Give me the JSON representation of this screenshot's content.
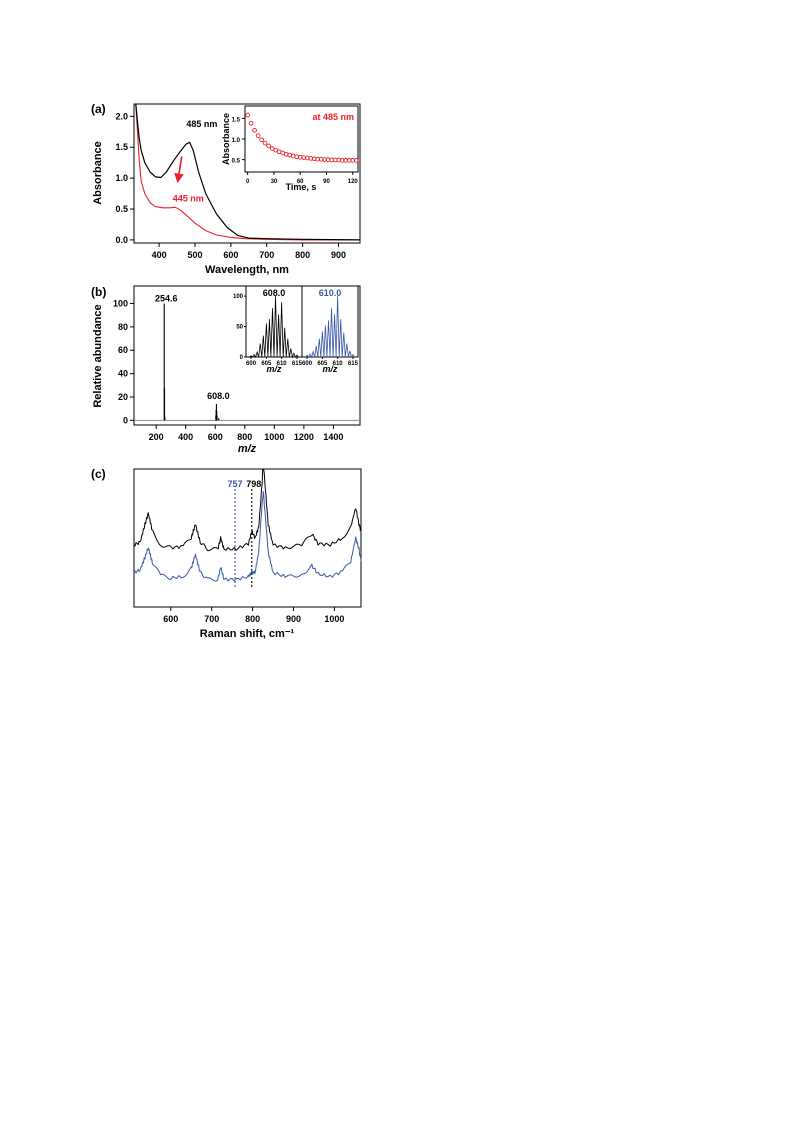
{
  "colors": {
    "black": "#000000",
    "red": "#e8202a",
    "blue": "#3a56a8",
    "gray": "#8a8a8a"
  },
  "chart_data": [
    {
      "panel": "(a)",
      "type": "line",
      "xlabel": "Wavelength, nm",
      "ylabel": "Absorbance",
      "xlim": [
        330,
        960
      ],
      "ylim": [
        -0.05,
        2.2
      ],
      "xticks": [
        400,
        500,
        600,
        700,
        800,
        900
      ],
      "yticks": [
        0.0,
        0.5,
        1.0,
        1.5,
        2.0
      ],
      "ytick_labels": [
        "0.0",
        "0.5",
        "1.0",
        "1.5",
        "2.0"
      ],
      "series": [
        {
          "color": "#000000",
          "x": [
            335,
            340,
            345,
            350,
            360,
            375,
            390,
            405,
            420,
            440,
            460,
            475,
            485,
            495,
            510,
            530,
            560,
            590,
            620,
            650,
            700,
            800,
            960
          ],
          "y": [
            2.2,
            1.9,
            1.62,
            1.45,
            1.25,
            1.1,
            1.02,
            1.01,
            1.1,
            1.28,
            1.44,
            1.55,
            1.58,
            1.45,
            1.1,
            0.75,
            0.42,
            0.2,
            0.07,
            0.03,
            0.02,
            0.01,
            0.0
          ]
        },
        {
          "color": "#e8202a",
          "x": [
            335,
            340,
            345,
            350,
            360,
            375,
            390,
            410,
            430,
            445,
            460,
            480,
            500,
            530,
            560,
            600,
            640,
            700,
            800,
            960
          ],
          "y": [
            2.2,
            1.72,
            1.25,
            0.95,
            0.75,
            0.6,
            0.54,
            0.52,
            0.52,
            0.53,
            0.48,
            0.38,
            0.27,
            0.15,
            0.08,
            0.04,
            0.02,
            0.01,
            0.0,
            0.0
          ]
        }
      ],
      "annotations": [
        {
          "text": "485 nm",
          "color": "#000000"
        },
        {
          "text": "445 nm",
          "color": "#e8202a"
        }
      ],
      "inset": {
        "type": "scatter",
        "title": "at 485 nm",
        "xlabel": "Time, s",
        "ylabel": "Absorbance",
        "xlim": [
          -3,
          126
        ],
        "ylim": [
          0.2,
          1.8
        ],
        "xticks": [
          0,
          30,
          60,
          90,
          120
        ],
        "yticks": [
          0.5,
          1.0,
          1.5
        ],
        "ytick_labels": [
          "0.5",
          "1.0",
          "1.5"
        ],
        "color": "#e8202a",
        "x": [
          0,
          4,
          8,
          12,
          16,
          20,
          24,
          28,
          32,
          36,
          40,
          44,
          48,
          52,
          56,
          60,
          64,
          68,
          72,
          76,
          80,
          84,
          88,
          92,
          96,
          100,
          104,
          108,
          112,
          116,
          120,
          124
        ],
        "y": [
          1.58,
          1.38,
          1.21,
          1.08,
          0.98,
          0.9,
          0.83,
          0.77,
          0.73,
          0.69,
          0.66,
          0.63,
          0.61,
          0.59,
          0.57,
          0.56,
          0.55,
          0.54,
          0.53,
          0.52,
          0.51,
          0.51,
          0.5,
          0.5,
          0.49,
          0.49,
          0.49,
          0.48,
          0.48,
          0.48,
          0.48,
          0.48
        ]
      }
    },
    {
      "panel": "(b)",
      "type": "bar",
      "xlabel": "m/z",
      "ylabel": "Relative abundance",
      "xlim": [
        50,
        1580
      ],
      "ylim": [
        -4,
        115
      ],
      "xticks": [
        200,
        400,
        600,
        800,
        1000,
        1200,
        1400
      ],
      "yticks": [
        0,
        20,
        40,
        60,
        80,
        100
      ],
      "color": "#000000",
      "peaks": [
        {
          "x": 254.6,
          "y": 100
        },
        {
          "x": 256.6,
          "y": 28
        },
        {
          "x": 258.6,
          "y": 3
        },
        {
          "x": 604,
          "y": 4
        },
        {
          "x": 606,
          "y": 9
        },
        {
          "x": 608,
          "y": 14
        },
        {
          "x": 610,
          "y": 8
        },
        {
          "x": 612,
          "y": 4
        },
        {
          "x": 624,
          "y": 2
        }
      ],
      "annotations": [
        {
          "text": "254.6"
        },
        {
          "text": "608.0"
        }
      ],
      "insets": [
        {
          "label": "608.0",
          "color": "#000000",
          "xlabel": "m/z",
          "xlim": [
            599,
            616
          ],
          "ylim": [
            0,
            110
          ],
          "xticks": [
            600,
            605,
            610,
            615
          ],
          "yticks": [
            0,
            50,
            100
          ],
          "x": [
            600,
            601,
            602,
            603,
            604,
            605,
            606,
            607,
            608,
            609,
            610,
            611,
            612,
            613,
            614,
            615
          ],
          "y": [
            2,
            4,
            8,
            22,
            35,
            55,
            62,
            80,
            100,
            70,
            90,
            48,
            30,
            14,
            6,
            3
          ]
        },
        {
          "label": "610.0",
          "color": "#3a56a8",
          "xlabel": "m/z",
          "xlim": [
            599,
            616
          ],
          "ylim": [
            0,
            110
          ],
          "xticks": [
            600,
            605,
            610,
            615
          ],
          "yticks": [],
          "x": [
            600,
            601,
            602,
            603,
            604,
            605,
            606,
            607,
            608,
            609,
            610,
            611,
            612,
            613,
            614,
            615
          ],
          "y": [
            3,
            5,
            9,
            18,
            30,
            42,
            52,
            60,
            80,
            70,
            100,
            62,
            40,
            22,
            10,
            4
          ]
        }
      ]
    },
    {
      "panel": "(c)",
      "type": "line",
      "xlabel": "Raman shift, cm⁻¹",
      "xlim": [
        510,
        1065
      ],
      "ylim": [
        0,
        1
      ],
      "xticks": [
        600,
        700,
        800,
        900,
        1000
      ],
      "series": [
        {
          "color": "#000000",
          "x": [
            510,
            525,
            537,
            545,
            555,
            575,
            600,
            630,
            650,
            660,
            672,
            690,
            715,
            722,
            730,
            760,
            790,
            798,
            806,
            815,
            822,
            826,
            830,
            838,
            850,
            880,
            920,
            945,
            960,
            990,
            1020,
            1040,
            1052,
            1060,
            1065
          ],
          "y": [
            0.45,
            0.47,
            0.6,
            0.68,
            0.55,
            0.45,
            0.43,
            0.44,
            0.5,
            0.6,
            0.47,
            0.42,
            0.42,
            0.5,
            0.42,
            0.42,
            0.46,
            0.55,
            0.5,
            0.58,
            0.85,
            1.05,
            0.9,
            0.6,
            0.45,
            0.43,
            0.45,
            0.53,
            0.46,
            0.45,
            0.5,
            0.58,
            0.72,
            0.6,
            0.55
          ]
        },
        {
          "color": "#3a56a8",
          "x": [
            510,
            525,
            537,
            545,
            555,
            575,
            600,
            630,
            650,
            660,
            672,
            690,
            715,
            722,
            730,
            760,
            790,
            798,
            806,
            815,
            822,
            826,
            830,
            838,
            850,
            880,
            920,
            945,
            960,
            990,
            1020,
            1040,
            1052,
            1060,
            1065
          ],
          "y": [
            0.25,
            0.27,
            0.36,
            0.43,
            0.32,
            0.23,
            0.21,
            0.22,
            0.28,
            0.38,
            0.25,
            0.2,
            0.2,
            0.29,
            0.2,
            0.2,
            0.22,
            0.25,
            0.25,
            0.4,
            0.7,
            0.84,
            0.7,
            0.4,
            0.25,
            0.22,
            0.23,
            0.3,
            0.24,
            0.22,
            0.26,
            0.33,
            0.5,
            0.42,
            0.33
          ]
        }
      ],
      "markers": [
        {
          "x": 757,
          "text": "757",
          "color": "#3a56a8"
        },
        {
          "x": 798,
          "text": "798",
          "color": "#000000"
        }
      ]
    }
  ]
}
